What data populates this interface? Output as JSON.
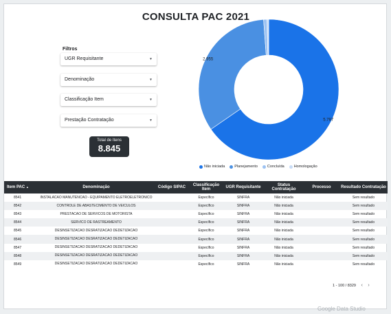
{
  "title": "CONSULTA PAC 2021",
  "filters": {
    "label": "Filtros",
    "items": [
      {
        "label": "UGR Requisitante"
      },
      {
        "label": "Denominação"
      },
      {
        "label": "Classificação Item"
      },
      {
        "label": "Prestação Contratação"
      }
    ]
  },
  "scorecard": {
    "label": "Total de Itens",
    "value": "8.845"
  },
  "chart_data": {
    "type": "pie",
    "categories": [
      "Não iniciada",
      "Planejamento",
      "Concluída",
      "Homologação"
    ],
    "values": [
      5787,
      2955,
      70,
      33
    ],
    "value_labels": [
      "5.787",
      "2.955",
      "",
      ""
    ],
    "colors": [
      "#1a73e8",
      "#4a90e2",
      "#9cc2f2",
      "#c8dcf7"
    ],
    "legend_position": "bottom"
  },
  "table": {
    "headers": [
      "Item PAC",
      "Denominação",
      "Código SIPAC",
      "Classificação Item",
      "UGR Requisitante",
      "Status Contratação",
      "Processo",
      "Resultado Contratação"
    ],
    "sort_indicator": "▲",
    "rows": [
      [
        "8541",
        "INSTALACAO MANUTENCAO - EQUIPAMENTO ELETROELETRONICO",
        "",
        "Específico",
        "SINFRA",
        "Não iniciada",
        "",
        "Sem resultado"
      ],
      [
        "8542",
        "CONTROLE DE ABASTECIMENTO DE VEICULOS",
        "",
        "Específico",
        "SINFRA",
        "Não iniciada",
        "",
        "Sem resultado"
      ],
      [
        "8543",
        "PRESTACAO DE SERVICOS DE MOTORISTA",
        "",
        "Específico",
        "SINFRA",
        "Não iniciada",
        "",
        "Sem resultado"
      ],
      [
        "8544",
        "SERVICO DE RASTREAMENTO",
        "",
        "Específico",
        "SINFRA",
        "Não iniciada",
        "",
        "Sem resultado"
      ],
      [
        "8545",
        "DESINSETIZACAO DESRATIZACAO DEDETIZACAO",
        "",
        "Específico",
        "SINFRA",
        "Não iniciada",
        "",
        "Sem resultado"
      ],
      [
        "8546",
        "DESINSETIZACAO DESRATIZACAO DEDETIZACAO",
        "",
        "Específico",
        "SINFRA",
        "Não iniciada",
        "",
        "Sem resultado"
      ],
      [
        "8547",
        "DESINSETIZACAO DESRATIZACAO DEDETIZACAO",
        "",
        "Específico",
        "SINFRA",
        "Não iniciada",
        "",
        "Sem resultado"
      ],
      [
        "8548",
        "DESINSETIZACAO DESRATIZACAO DEDETIZACAO",
        "",
        "Específico",
        "SINFRA",
        "Não iniciada",
        "",
        "Sem resultado"
      ],
      [
        "8549",
        "DESINSETIZACAO DESRATIZACAO DEDETIZACAO",
        "",
        "Específico",
        "SINFRA",
        "Não iniciada",
        "",
        "Sem resultado"
      ]
    ]
  },
  "pager": {
    "text": "1 - 100 / 8329",
    "prev_icon": "chevron-left-icon",
    "next_icon": "chevron-right-icon"
  },
  "watermark": "Google Data Studio"
}
